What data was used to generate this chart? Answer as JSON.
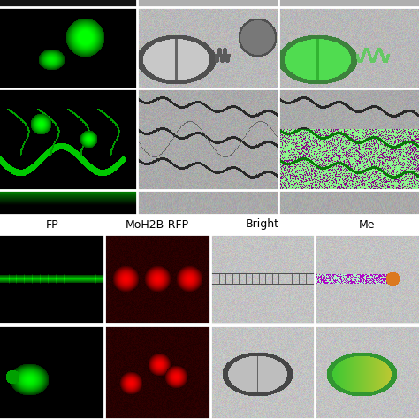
{
  "background_color": "#f0f0f0",
  "col3_labels": [
    "FP",
    "MoH2B-RFP",
    "Bright",
    "Me"
  ],
  "label_fontsize": 9,
  "white_gap_color": "#ffffff",
  "top_section_bg": "#c8c8c8",
  "panel_border": "#ffffff",
  "fig_bg": "#e8e8e8"
}
